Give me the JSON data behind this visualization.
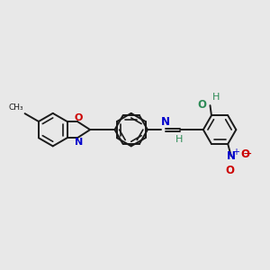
{
  "background_color": "#e8e8e8",
  "bond_color": "#1a1a1a",
  "N_color": "#0000cc",
  "O_color": "#cc0000",
  "teal_color": "#2e8b57",
  "figsize": [
    3.0,
    3.0
  ],
  "dpi": 100,
  "lw": 1.4,
  "ring_r": 0.55,
  "xlim": [
    0,
    10
  ],
  "ylim": [
    1,
    9
  ]
}
